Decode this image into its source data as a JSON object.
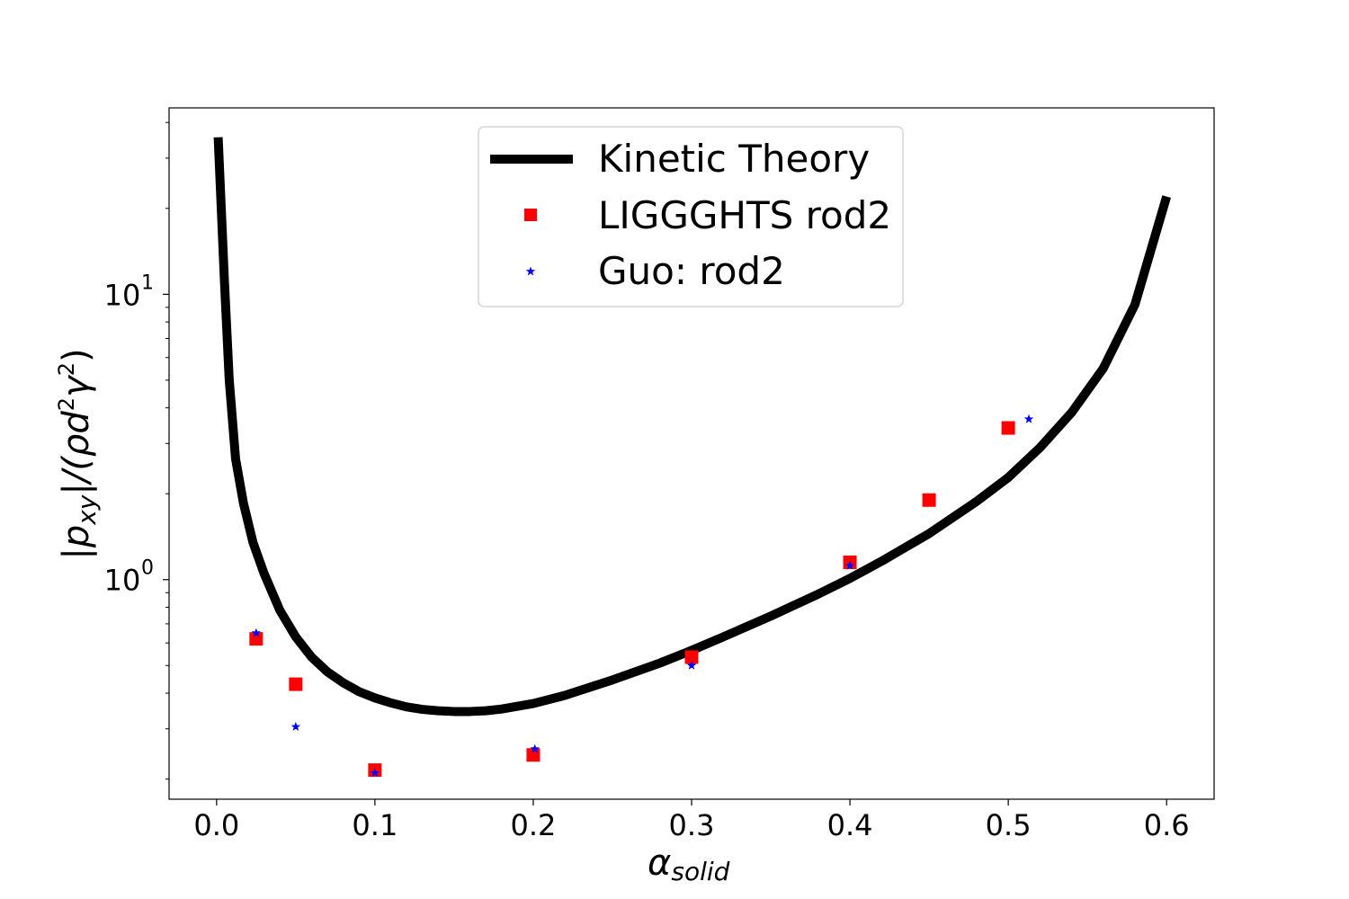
{
  "chart_data": {
    "type": "line",
    "title": "",
    "xlabel": {
      "main": "α",
      "sub": "solid"
    },
    "ylabel": "|p_xy|/(ρd²γ²)",
    "ylabel_parts": {
      "open": "|p",
      "sub": "xy",
      "mid": "|/(ρd",
      "sup1": "2",
      "gamma": "γ",
      "sup2": "2",
      "close": ")"
    },
    "x_scale": "linear",
    "y_scale": "log",
    "xlim": [
      -0.03,
      0.63
    ],
    "ylim": [
      0.17,
      45
    ],
    "x_ticks": [
      0.0,
      0.1,
      0.2,
      0.3,
      0.4,
      0.5,
      0.6
    ],
    "x_tick_labels": [
      "0.0",
      "0.1",
      "0.2",
      "0.3",
      "0.4",
      "0.5",
      "0.6"
    ],
    "y_ticks": [
      1,
      10
    ],
    "y_tick_labels": [
      {
        "base": "10",
        "exp": "0"
      },
      {
        "base": "10",
        "exp": "1"
      }
    ],
    "grid": false,
    "legend_position": "top-center",
    "series": [
      {
        "name": "Kinetic Theory",
        "kind": "line",
        "color": "#000000",
        "x": [
          0.001,
          0.005,
          0.008,
          0.012,
          0.017,
          0.023,
          0.03,
          0.04,
          0.05,
          0.06,
          0.07,
          0.08,
          0.09,
          0.1,
          0.11,
          0.12,
          0.13,
          0.14,
          0.15,
          0.16,
          0.17,
          0.18,
          0.2,
          0.22,
          0.25,
          0.28,
          0.3,
          0.32,
          0.35,
          0.38,
          0.4,
          0.42,
          0.45,
          0.48,
          0.5,
          0.52,
          0.54,
          0.56,
          0.58,
          0.6
        ],
        "y": [
          35.5,
          11.0,
          5.0,
          2.65,
          1.85,
          1.35,
          1.05,
          0.78,
          0.63,
          0.535,
          0.475,
          0.435,
          0.405,
          0.385,
          0.37,
          0.358,
          0.351,
          0.347,
          0.345,
          0.345,
          0.347,
          0.352,
          0.368,
          0.393,
          0.445,
          0.51,
          0.565,
          0.63,
          0.745,
          0.89,
          1.01,
          1.16,
          1.45,
          1.88,
          2.28,
          2.9,
          3.85,
          5.5,
          9.2,
          22.0
        ]
      },
      {
        "name": "LIGGGHTS rod2",
        "kind": "scatter",
        "marker": "square",
        "color": "#ff0000",
        "x": [
          0.025,
          0.05,
          0.1,
          0.2,
          0.3,
          0.4,
          0.45,
          0.5
        ],
        "y": [
          0.62,
          0.43,
          0.215,
          0.243,
          0.535,
          1.15,
          1.9,
          3.4
        ]
      },
      {
        "name": "Guo: rod2",
        "kind": "scatter",
        "marker": "star",
        "color": "#0000ff",
        "x": [
          0.025,
          0.05,
          0.1,
          0.201,
          0.3,
          0.4,
          0.513
        ],
        "y": [
          0.65,
          0.305,
          0.21,
          0.255,
          0.5,
          1.12,
          3.65
        ]
      }
    ]
  }
}
